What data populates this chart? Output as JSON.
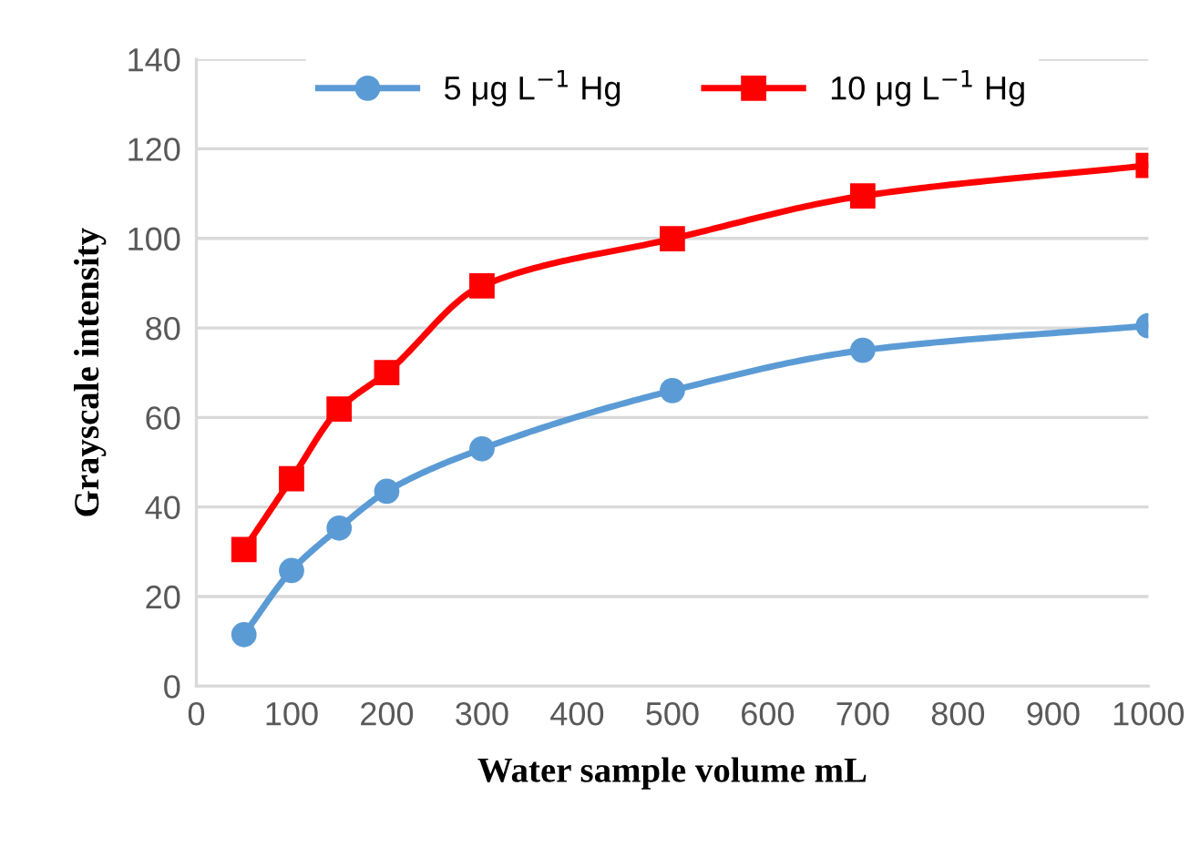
{
  "chart_data": {
    "type": "line",
    "xlabel": "Water sample volume mL",
    "ylabel": "Grayscale intensity",
    "x": [
      50,
      100,
      150,
      200,
      300,
      500,
      700,
      1000
    ],
    "series": [
      {
        "name": "5 μg L$^{−1}$ Hg",
        "color": "#5b9bd5",
        "marker": "circle",
        "values": [
          11.5,
          25.8,
          35.3,
          43.5,
          53,
          66,
          75,
          80.5
        ]
      },
      {
        "name": "10 μg L$^{−1}$ Hg",
        "color": "#ff0000",
        "marker": "square",
        "values": [
          30.5,
          46.3,
          61.9,
          70,
          89.4,
          99.9,
          109.5,
          116.3
        ]
      }
    ],
    "xlim": [
      0,
      1000
    ],
    "xticks": [
      0,
      100,
      200,
      300,
      400,
      500,
      600,
      700,
      800,
      900,
      1000
    ],
    "ylim": [
      0,
      140
    ],
    "yticks": [
      0,
      20,
      40,
      60,
      80,
      100,
      120,
      140
    ],
    "grid": "y",
    "legend": "top",
    "line_style": "solid"
  }
}
